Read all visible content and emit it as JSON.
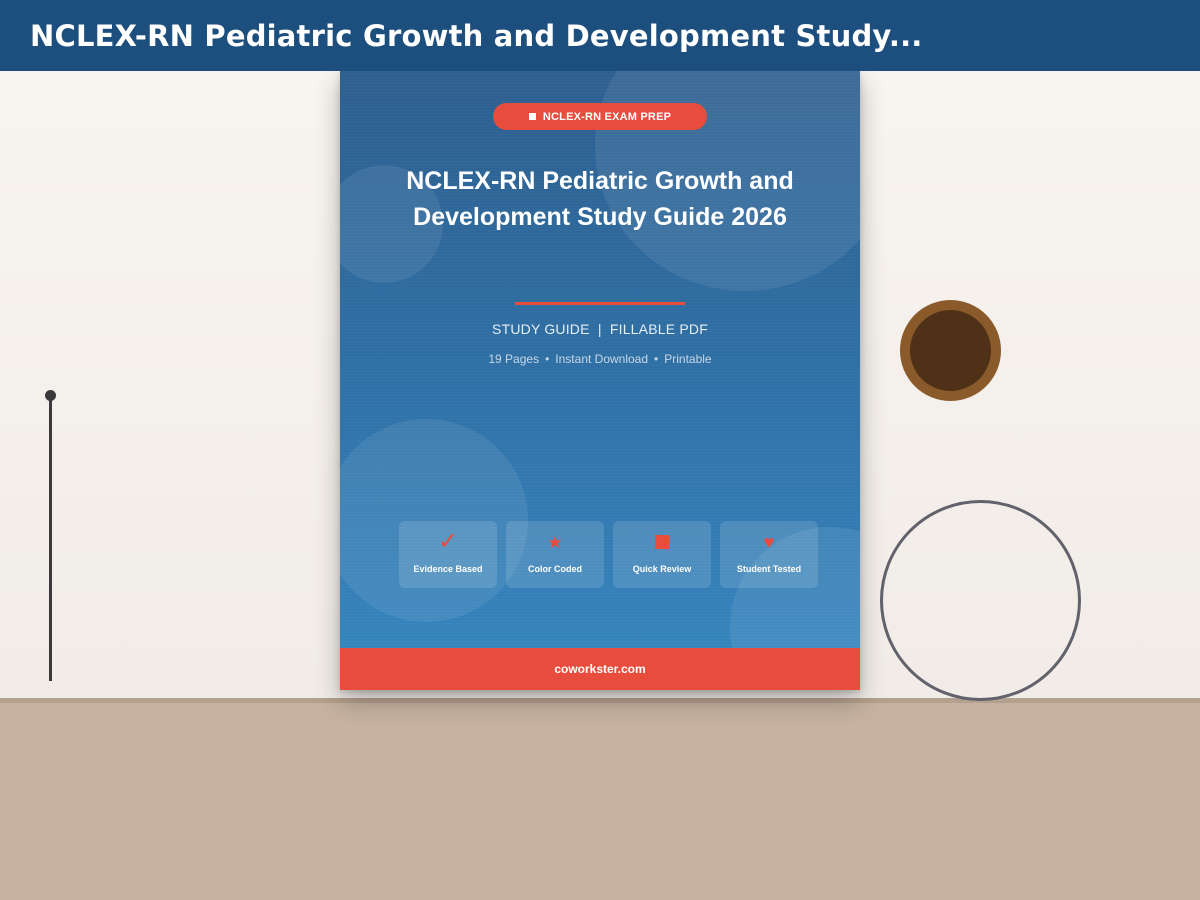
{
  "header": {
    "title": "NCLEX-RN Pediatric Growth and Development Study..."
  },
  "cover": {
    "badge": {
      "icon": "square-icon",
      "label": "NCLEX-RN EXAM PREP"
    },
    "title": "NCLEX-RN Pediatric Growth and Development Study Guide 2026",
    "format": "STUDY GUIDE  |  FILLABLE PDF",
    "meta": [
      "19 Pages",
      "Instant Download",
      "Printable"
    ],
    "meta_separator": "•",
    "features": [
      {
        "icon": "checkmark-icon",
        "glyph": "✓",
        "label": "Evidence Based"
      },
      {
        "icon": "star-icon",
        "glyph": "★",
        "label": "Color Coded"
      },
      {
        "icon": "square-icon",
        "glyph": "■",
        "label": "Quick Review"
      },
      {
        "icon": "heart-icon",
        "glyph": "♥",
        "label": "Student Tested"
      }
    ],
    "footer": "coworkster.com"
  },
  "colors": {
    "header_bg": "#1c4e7e",
    "cover_top": "#2e5f8f",
    "cover_bottom": "#3787c0",
    "accent": "#e84c3d",
    "wall": "#f5f0eb",
    "desk": "#c6b29f",
    "cup_rim": "#8b5a2b",
    "cup_coffee": "#4e3116",
    "ring": "#62626c"
  }
}
